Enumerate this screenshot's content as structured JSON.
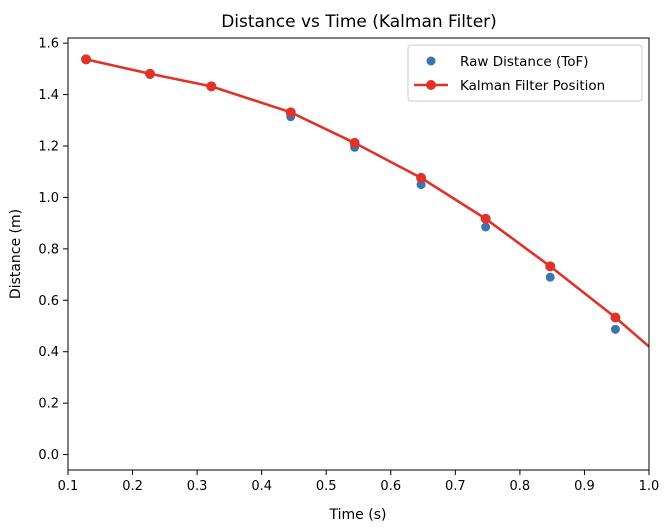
{
  "chart_data": {
    "type": "scatter",
    "title": "Distance vs Time (Kalman Filter)",
    "xlabel": "Time (s)",
    "ylabel": "Distance (m)",
    "xlim": [
      0.1,
      1.0
    ],
    "ylim": [
      -0.06,
      1.62
    ],
    "xticks": [
      0.1,
      0.2,
      0.3,
      0.4,
      0.5,
      0.6,
      0.7,
      0.8,
      0.9,
      1.0
    ],
    "xtick_labels": [
      "0.1",
      "0.2",
      "0.3",
      "0.4",
      "0.5",
      "0.6",
      "0.7",
      "0.8",
      "0.9",
      "1.0"
    ],
    "yticks": [
      0.0,
      0.2,
      0.4,
      0.6,
      0.8,
      1.0,
      1.2,
      1.4,
      1.6
    ],
    "ytick_labels": [
      "0.0",
      "0.2",
      "0.4",
      "0.6",
      "0.8",
      "1.0",
      "1.2",
      "1.4",
      "1.6"
    ],
    "grid": false,
    "legend_position": "top-right",
    "series": [
      {
        "name": "Raw Distance (ToF)",
        "kind": "scatter",
        "color": "#3a75b0",
        "x": [
          0.128,
          0.227,
          0.322,
          0.445,
          0.544,
          0.647,
          0.747,
          0.847,
          0.948
        ],
        "y": [
          1.535,
          1.478,
          1.432,
          1.314,
          1.195,
          1.05,
          0.885,
          0.69,
          0.487
        ]
      },
      {
        "name": "Kalman Filter Position",
        "kind": "line",
        "color": "#e03228",
        "marker": "circle",
        "x": [
          0.128,
          0.227,
          0.322,
          0.445,
          0.544,
          0.647,
          0.747,
          0.847,
          0.948,
          1.0
        ],
        "y": [
          1.537,
          1.481,
          1.432,
          1.331,
          1.212,
          1.076,
          0.917,
          0.732,
          0.533,
          0.42
        ],
        "marker_count": 9
      }
    ]
  }
}
